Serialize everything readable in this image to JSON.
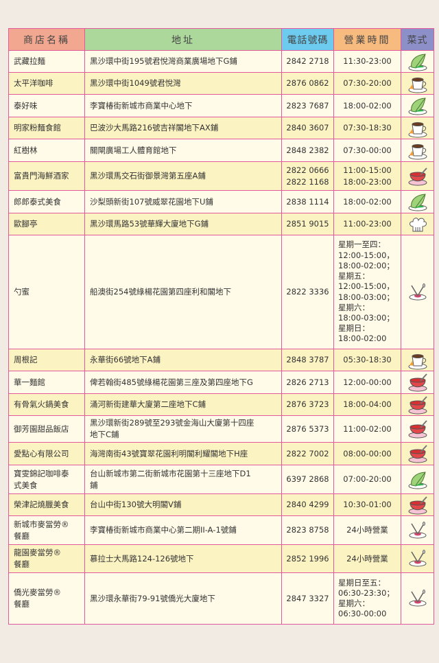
{
  "header": {
    "name": "商店名稱",
    "address": "地址",
    "phone": "電話號碼",
    "hours": "營業時間",
    "cuisine": "菜式"
  },
  "colors": {
    "border": "#e2589a",
    "header_name": "#f2a890",
    "header_address": "#acd89c",
    "header_phone": "#6ccbee",
    "header_hours": "#f7bb80",
    "header_cuisine": "#8d8fc9",
    "row_light": "#fffbe8",
    "row_dark": "#fcf3c3"
  },
  "rows": [
    {
      "name": [
        "武藏拉麵"
      ],
      "address": [
        "黑沙環中街195號君悅灣商業廣場地下G鋪"
      ],
      "phone": [
        "2842 2718"
      ],
      "hours": [
        "11:30-23:00"
      ],
      "icon": "leaf-icon"
    },
    {
      "name": [
        "太平洋咖啡"
      ],
      "address": [
        "黑沙環中街1049號君悅灣"
      ],
      "phone": [
        "2876 0862"
      ],
      "hours": [
        "07:30-20:00"
      ],
      "icon": "coffee-cup-icon"
    },
    {
      "name": [
        "泰好味"
      ],
      "address": [
        "李寶椿街新城市商業中心地下"
      ],
      "phone": [
        "2823 7687"
      ],
      "hours": [
        "18:00-02:00"
      ],
      "icon": "leaf-icon"
    },
    {
      "name": [
        "明家粉麵食館"
      ],
      "address": [
        "巴波沙大馬路216號吉祥閣地下AX鋪"
      ],
      "phone": [
        "2840 3607"
      ],
      "hours": [
        "07:30-18:30"
      ],
      "icon": "coffee-cup-icon"
    },
    {
      "name": [
        "紅樹林"
      ],
      "address": [
        "關閘廣場工人體育館地下"
      ],
      "phone": [
        "2848 2382"
      ],
      "hours": [
        "07:30-00:00"
      ],
      "icon": "coffee-cup-icon"
    },
    {
      "name": [
        "富貴門海鮮酒家"
      ],
      "address": [
        "黑沙環馬交石街御景灣第五座A鋪"
      ],
      "phone": [
        "2822 0666",
        "2822 1168"
      ],
      "hours": [
        "11:00-15:00",
        "18:00-23:00"
      ],
      "icon": "soup-bowl-icon"
    },
    {
      "name": [
        "郎郎泰式美食"
      ],
      "address": [
        "沙梨頭新街107號威翠花園地下U鋪"
      ],
      "phone": [
        "2838 1114"
      ],
      "hours": [
        "18:00-02:00"
      ],
      "icon": "leaf-icon"
    },
    {
      "name": [
        "歐腳亭"
      ],
      "address": [
        "黑沙環馬路53號華輝大廈地下G鋪"
      ],
      "phone": [
        "2851 9015"
      ],
      "hours": [
        "11:00-23:00"
      ],
      "icon": "chef-hat-icon"
    },
    {
      "name": [
        "勺蜜"
      ],
      "address": [
        "船澳街254號綠楊花園第四座利和閣地下"
      ],
      "phone": [
        "2822 3336"
      ],
      "hours": [
        "星期一至四：",
        "12:00-15:00，",
        "18:00-02:00；",
        "星期五：",
        "12:00-15:00，",
        "18:00-03:00；",
        "星期六：",
        "18:00-03:00；",
        "星期日：",
        "18:00-02:00"
      ],
      "icon": "cutlery-icon"
    },
    {
      "name": [
        "周根記"
      ],
      "address": [
        "永華街66號地下A鋪"
      ],
      "phone": [
        "2848 3787"
      ],
      "hours": [
        "05:30-18:30"
      ],
      "icon": "coffee-cup-icon"
    },
    {
      "name": [
        "華一麵館"
      ],
      "address": [
        "俾若翰街485號綠楊花園第三座及第四座地下G"
      ],
      "phone": [
        "2826 2713"
      ],
      "hours": [
        "12:00-00:00"
      ],
      "icon": "soup-bowl-icon"
    },
    {
      "name": [
        "有骨氣火鍋美食"
      ],
      "address": [
        "涌河新街建華大廈第二座地下C鋪"
      ],
      "phone": [
        "2876 3723"
      ],
      "hours": [
        "18:00-04:00"
      ],
      "icon": "soup-bowl-icon"
    },
    {
      "name": [
        "御芳園甜品飯店"
      ],
      "address": [
        "黑沙環新街289號至293號金海山大廈第十四座",
        "地下C鋪"
      ],
      "phone": [
        "2876 5373"
      ],
      "hours": [
        "11:00-02:00"
      ],
      "icon": "soup-bowl-icon"
    },
    {
      "name": [
        "愛點心有限公司"
      ],
      "address": [
        "海灣南街43號寶翠花園利明閣利耀閣地下H座"
      ],
      "phone": [
        "2822 7002"
      ],
      "hours": [
        "08:00-00:00"
      ],
      "icon": "soup-bowl-icon"
    },
    {
      "name": [
        "寶雯錦記咖啡泰",
        "式美食"
      ],
      "address": [
        "台山新城市第二街新城市花園第十三座地下D1",
        "鋪"
      ],
      "phone": [
        "6397 2868"
      ],
      "hours": [
        "07:00-20:00"
      ],
      "icon": "leaf-icon"
    },
    {
      "name": [
        "榮津記燒臘美食"
      ],
      "address": [
        "台山中街130號大明閣V鋪"
      ],
      "phone": [
        "2840 4299"
      ],
      "hours": [
        "10:30-01:00"
      ],
      "icon": "soup-bowl-icon"
    },
    {
      "name": [
        "新城市麥當勞®",
        "餐廳"
      ],
      "address": [
        "李寶椿街新城市商業中心第二期II-A-1號鋪"
      ],
      "phone": [
        "2823 8758"
      ],
      "hours": [
        "24小時營業"
      ],
      "icon": "cutlery-icon"
    },
    {
      "name": [
        "龍園麥當勞®",
        "餐廳"
      ],
      "address": [
        "慕拉士大馬路124-126號地下"
      ],
      "phone": [
        "2852 1996"
      ],
      "hours": [
        "24小時營業"
      ],
      "icon": "cutlery-icon"
    },
    {
      "name": [
        "僑光麥當勞®",
        "餐廳"
      ],
      "address": [
        "黑沙環永華街79-91號僑光大廈地下"
      ],
      "phone": [
        "2847 3327"
      ],
      "hours": [
        "星期日至五：",
        "06:30-23:30；",
        "星期六：",
        "06:30-00:00"
      ],
      "icon": "cutlery-icon"
    }
  ]
}
